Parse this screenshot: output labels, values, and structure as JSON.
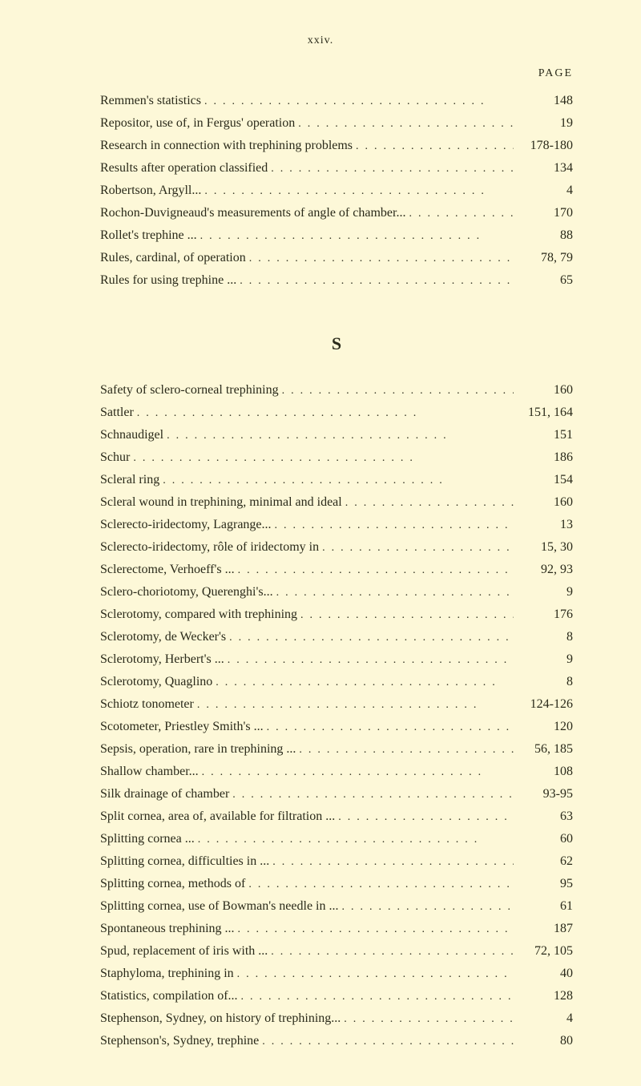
{
  "page_number_top": "xxiv.",
  "page_header": "PAGE",
  "entries_r": [
    {
      "text": "Remmen's statistics",
      "page": "148"
    },
    {
      "text": "Repositor, use of, in Fergus' operation",
      "page": "19"
    },
    {
      "text": "Research in connection with trephining problems",
      "page": "178-180"
    },
    {
      "text": "Results after operation classified",
      "page": "134"
    },
    {
      "text": "Robertson, Argyll...",
      "page": "4"
    },
    {
      "text": "Rochon-Duvigneaud's measurements of angle of chamber...",
      "page": "170"
    },
    {
      "text": "Rollet's trephine ...",
      "page": "88"
    },
    {
      "text": "Rules, cardinal, of operation",
      "page": "78, 79"
    },
    {
      "text": "Rules for using trephine ...",
      "page": "65"
    }
  ],
  "section_letter": "S",
  "entries_s": [
    {
      "text": "Safety of sclero-corneal trephining",
      "page": "160"
    },
    {
      "text": "Sattler",
      "page": "151, 164"
    },
    {
      "text": "Schnaudigel",
      "page": "151"
    },
    {
      "text": "Schur",
      "page": "186"
    },
    {
      "text": "Scleral ring",
      "page": "154"
    },
    {
      "text": "Scleral wound in trephining, minimal and ideal",
      "page": "160"
    },
    {
      "text": "Sclerecto-iridectomy, Lagrange...",
      "page": "13"
    },
    {
      "text": "Sclerecto-iridectomy, rôle of iridectomy in",
      "page": "15, 30"
    },
    {
      "text": "Sclerectome, Verhoeff's ...",
      "page": "92, 93"
    },
    {
      "text": "Sclero-choriotomy, Querenghi's...",
      "page": "9"
    },
    {
      "text": "Sclerotomy, compared with trephining",
      "page": "176"
    },
    {
      "text": "Sclerotomy, de Wecker's",
      "page": "8"
    },
    {
      "text": "Sclerotomy, Herbert's ...",
      "page": "9"
    },
    {
      "text": "Sclerotomy, Quaglino",
      "page": "8"
    },
    {
      "text": "Schiotz tonometer",
      "page": "124-126"
    },
    {
      "text": "Scotometer, Priestley Smith's ...",
      "page": "120"
    },
    {
      "text": "Sepsis, operation, rare in trephining ...",
      "page": "56, 185"
    },
    {
      "text": "Shallow chamber...",
      "page": "108"
    },
    {
      "text": "Silk drainage of chamber",
      "page": "93-95"
    },
    {
      "text": "Split cornea, area of, available for filtration ...",
      "page": "63"
    },
    {
      "text": "Splitting cornea ...",
      "page": "60"
    },
    {
      "text": "Splitting cornea, difficulties in ...",
      "page": "62"
    },
    {
      "text": "Splitting cornea, methods of",
      "page": "95"
    },
    {
      "text": "Splitting cornea, use of Bowman's needle in ...",
      "page": "61"
    },
    {
      "text": "Spontaneous trephining ...",
      "page": "187"
    },
    {
      "text": "Spud, replacement of iris with ...",
      "page": "72, 105"
    },
    {
      "text": "Staphyloma, trephining in",
      "page": "40"
    },
    {
      "text": "Statistics, compilation of...",
      "page": "128"
    },
    {
      "text": "Stephenson, Sydney, on history of trephining...",
      "page": "4"
    },
    {
      "text": "Stephenson's, Sydney, trephine",
      "page": "80"
    }
  ],
  "dots_string": "..............................."
}
